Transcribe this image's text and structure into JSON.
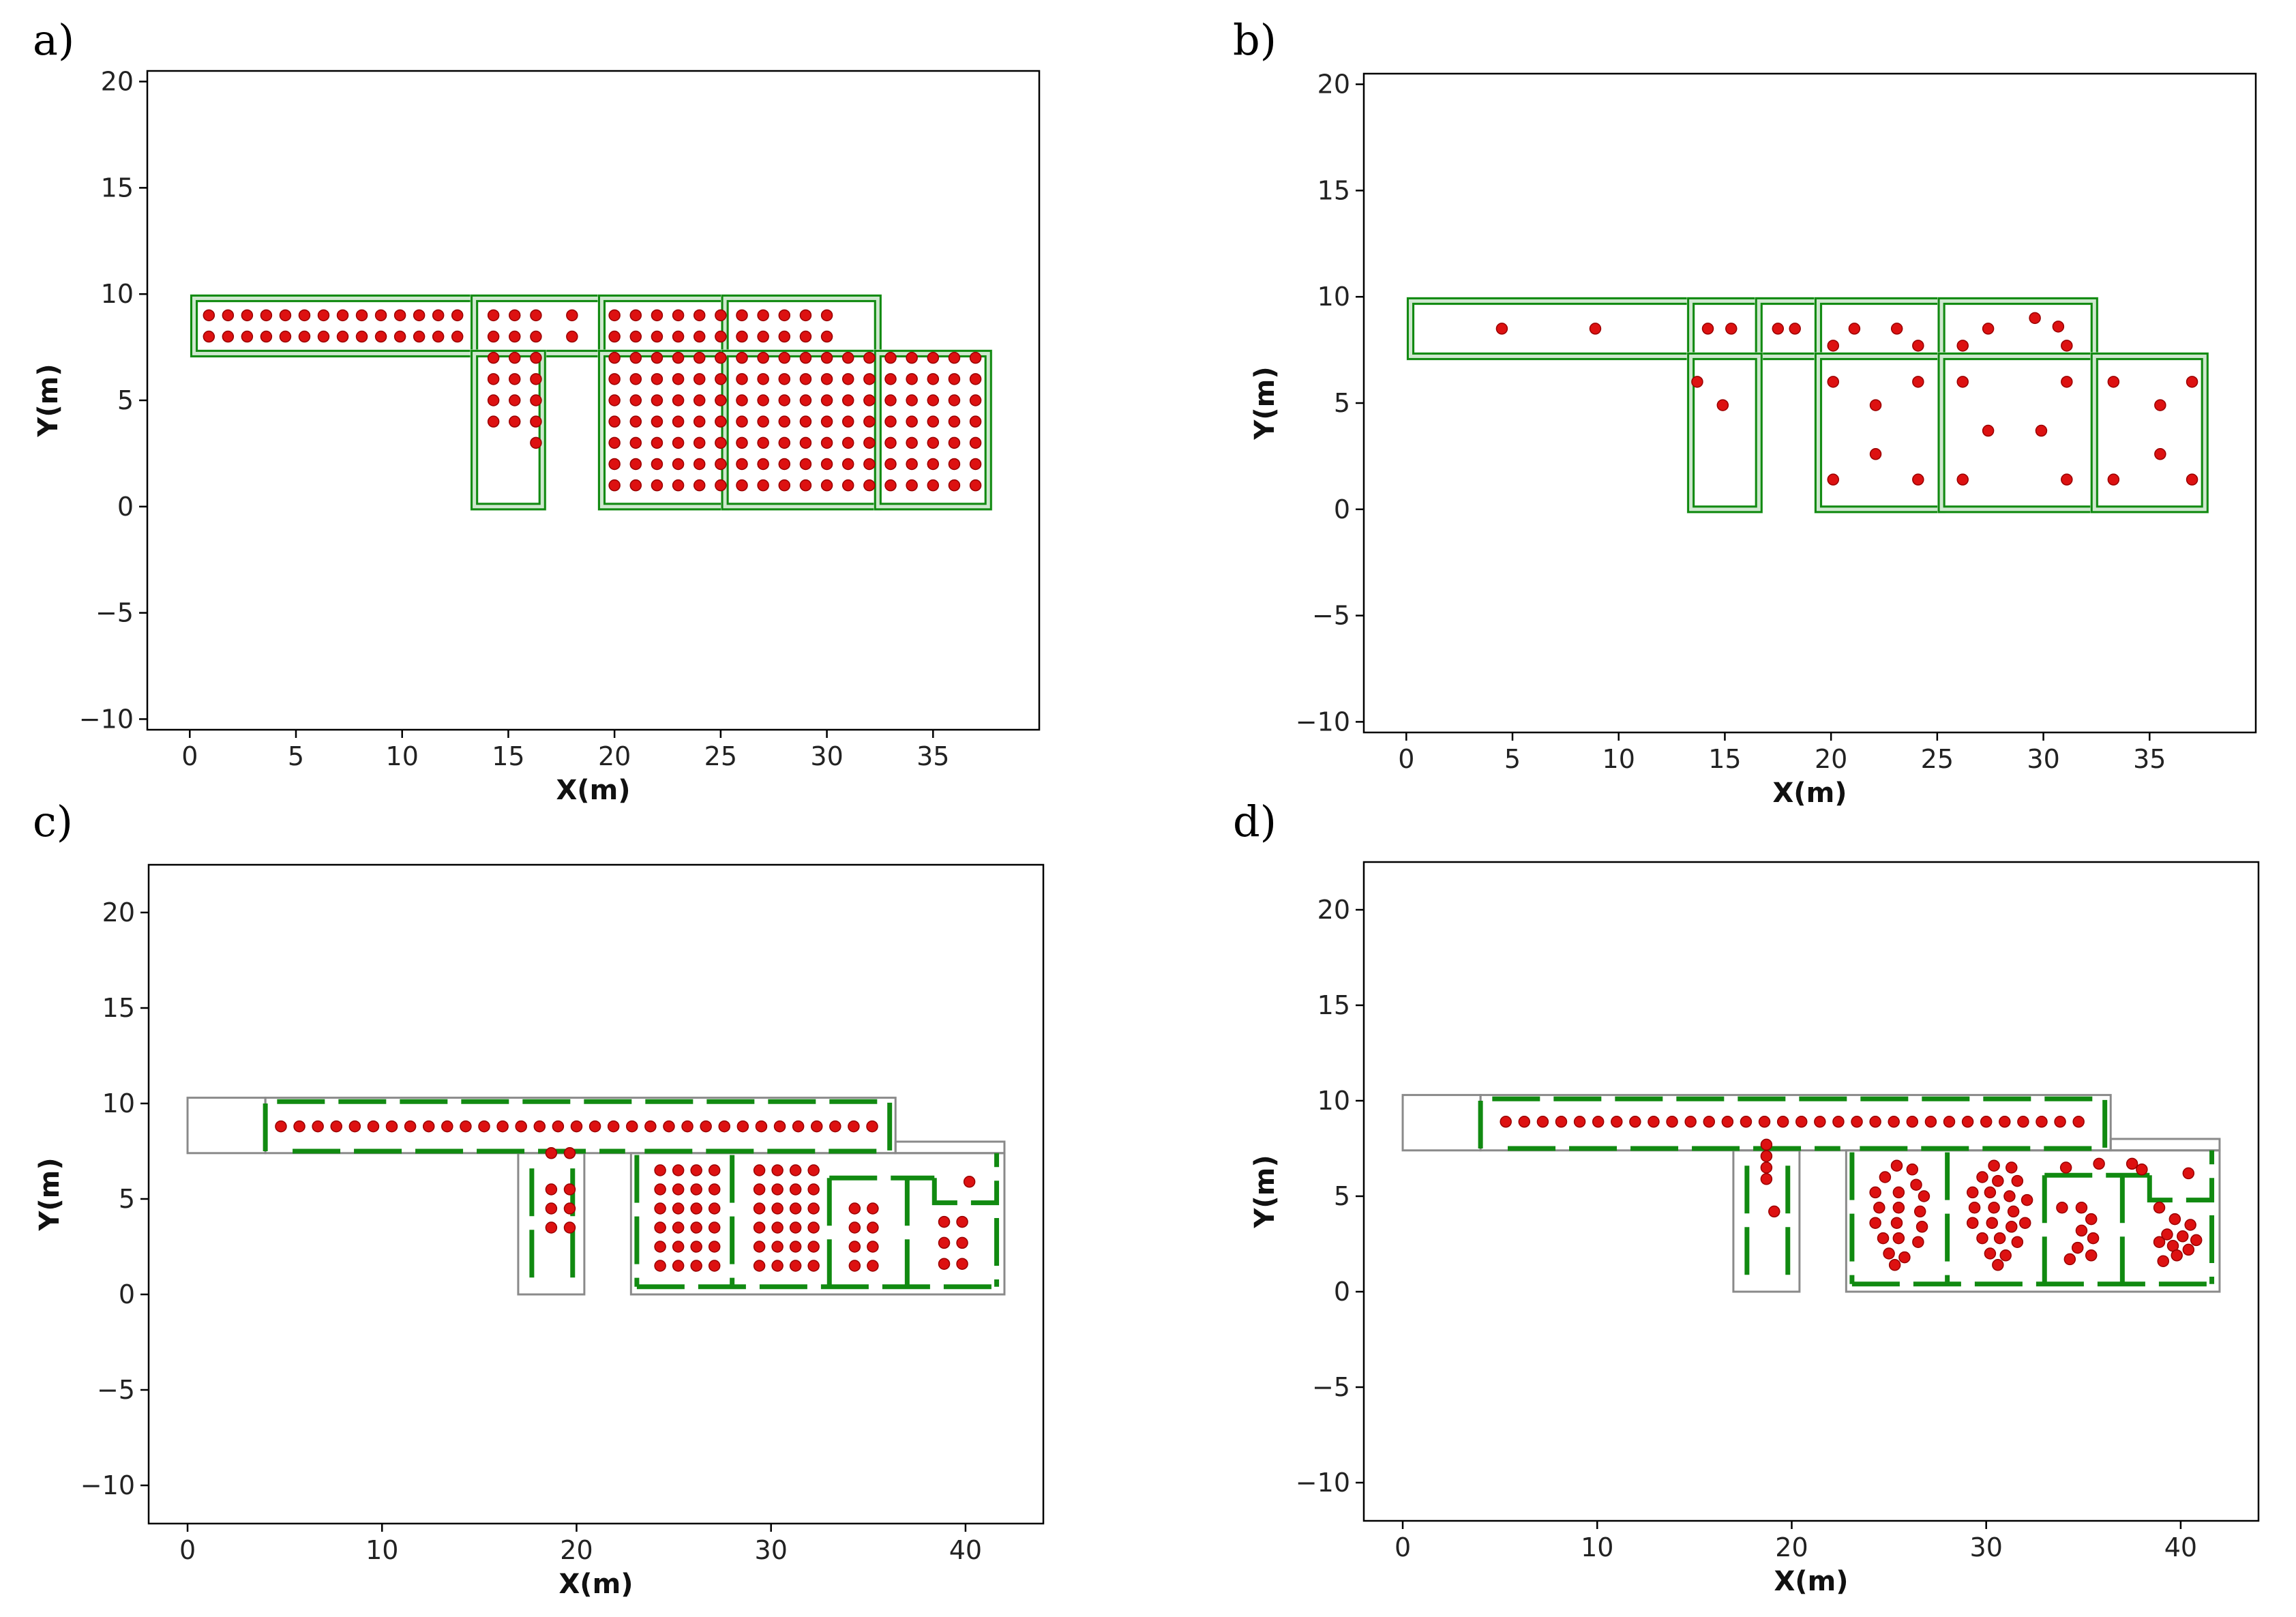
{
  "figure": {
    "panels": [
      {
        "label": "a)"
      },
      {
        "label": "b)"
      },
      {
        "label": "c)"
      },
      {
        "label": "d)"
      }
    ]
  },
  "colors": {
    "wall": "#118a11",
    "wall_fill": "#cfe8cf",
    "point": "#dd1111",
    "point_edge": "#990000",
    "gray": "#8a8a8a"
  },
  "chart_data": [
    {
      "id": "a",
      "type": "scatter",
      "title": "",
      "xlabel": "X(m)",
      "ylabel": "Y(m)",
      "xlim": [
        -2,
        40
      ],
      "ylim": [
        -10.5,
        20.5
      ],
      "xticks": [
        0,
        5,
        10,
        15,
        20,
        25,
        30,
        35
      ],
      "yticks": [
        -10,
        -5,
        0,
        5,
        10,
        15,
        20
      ],
      "rooms": [
        [
          0.2,
          7.2,
          13.4,
          9.8
        ],
        [
          13.4,
          7.2,
          19.4,
          9.8
        ],
        [
          19.4,
          7.2,
          25.2,
          9.8
        ],
        [
          25.2,
          7.2,
          32.4,
          9.8
        ],
        [
          13.4,
          0,
          16.6,
          7.2
        ],
        [
          19.4,
          0,
          25.2,
          7.2
        ],
        [
          25.2,
          0,
          32.4,
          7.2
        ],
        [
          32.4,
          0,
          37.6,
          7.2
        ]
      ],
      "gray_rooms": [
        [
          13.4,
          0,
          16.6,
          7.2
        ]
      ],
      "point_groups": [
        {
          "x_start": 0.9,
          "x_step": 0.9,
          "count": 14,
          "y": [
            9.0,
            8.0
          ]
        },
        {
          "x_start": 14.3,
          "x_step": 1.0,
          "count": 3,
          "y": [
            9.0,
            8.0
          ]
        },
        {
          "x_start": 18.0,
          "x_step": 1.0,
          "count": 1,
          "y": [
            9.0,
            8.0
          ]
        },
        {
          "x_start": 20.0,
          "x_step": 1.0,
          "count": 11,
          "y": [
            9.0,
            8.0
          ]
        },
        {
          "x_start": 14.3,
          "x_step": 1.0,
          "count": 3,
          "y": [
            7.0,
            6.0,
            5.0,
            4.0
          ]
        },
        {
          "x_start": 20.0,
          "x_step": 1.0,
          "count": 18,
          "y": [
            7.0,
            6.0,
            5.0,
            4.0,
            3.0,
            2.0,
            1.0
          ]
        }
      ],
      "points": [
        [
          16.3,
          3.0
        ]
      ]
    },
    {
      "id": "b",
      "type": "scatter",
      "title": "",
      "xlabel": "X(m)",
      "ylabel": "Y(m)",
      "xlim": [
        -2,
        40
      ],
      "ylim": [
        -10.5,
        20.5
      ],
      "xticks": [
        0,
        5,
        10,
        15,
        20,
        25,
        30,
        35
      ],
      "yticks": [
        -10,
        -5,
        0,
        5,
        10,
        15,
        20
      ],
      "rooms": [
        [
          0.2,
          7.2,
          13.4,
          9.8
        ],
        [
          13.4,
          7.2,
          16.6,
          9.8
        ],
        [
          16.6,
          7.2,
          19.4,
          9.8
        ],
        [
          19.4,
          7.2,
          25.2,
          9.8
        ],
        [
          25.2,
          7.2,
          32.4,
          9.8
        ],
        [
          13.4,
          0,
          16.6,
          7.2
        ],
        [
          19.4,
          0,
          25.2,
          7.2
        ],
        [
          25.2,
          0,
          32.4,
          7.2
        ],
        [
          32.4,
          0,
          37.6,
          7.2
        ]
      ],
      "gray_rooms": [
        [
          13.4,
          0,
          16.6,
          7.2
        ]
      ],
      "point_groups": [],
      "points": [
        [
          4.5,
          8.5
        ],
        [
          8.9,
          8.5
        ],
        [
          14.2,
          8.5
        ],
        [
          15.3,
          8.5
        ],
        [
          17.5,
          8.5
        ],
        [
          18.3,
          8.5
        ],
        [
          13.7,
          6.0
        ],
        [
          14.9,
          4.9
        ],
        [
          20.1,
          7.7
        ],
        [
          21.1,
          8.5
        ],
        [
          23.1,
          8.5
        ],
        [
          24.1,
          7.7
        ],
        [
          20.1,
          6.0
        ],
        [
          22.1,
          4.9
        ],
        [
          24.1,
          6.0
        ],
        [
          22.1,
          2.6
        ],
        [
          20.1,
          1.4
        ],
        [
          24.1,
          1.4
        ],
        [
          26.2,
          7.7
        ],
        [
          27.4,
          8.5
        ],
        [
          29.6,
          9.0
        ],
        [
          30.7,
          8.6
        ],
        [
          31.1,
          7.7
        ],
        [
          26.2,
          6.0
        ],
        [
          31.1,
          6.0
        ],
        [
          27.4,
          3.7
        ],
        [
          29.9,
          3.7
        ],
        [
          26.2,
          1.4
        ],
        [
          31.1,
          1.4
        ],
        [
          33.3,
          6.0
        ],
        [
          35.5,
          4.9
        ],
        [
          37.0,
          6.0
        ],
        [
          33.3,
          1.4
        ],
        [
          35.5,
          2.6
        ],
        [
          37.0,
          1.4
        ]
      ]
    },
    {
      "id": "c",
      "type": "scatter",
      "title": "",
      "xlabel": "X(m)",
      "ylabel": "Y(m)",
      "xlim": [
        -2,
        44
      ],
      "ylim": [
        -12,
        22.5
      ],
      "xticks": [
        0,
        10,
        20,
        30,
        40
      ],
      "yticks": [
        -10,
        -5,
        0,
        5,
        10,
        15,
        20
      ],
      "gray_rooms": [
        [
          0,
          7.4,
          4,
          10.3
        ],
        [
          4,
          7.4,
          36.4,
          10.3
        ],
        [
          17,
          0,
          20.4,
          7.4
        ],
        [
          22.8,
          0,
          42,
          7.4
        ],
        [
          36.4,
          7.4,
          42,
          8
        ]
      ],
      "green_segments": [
        [
          [
            4,
            7.5
          ],
          [
            4,
            10.1
          ],
          [
            36.1,
            10.1
          ],
          [
            36.1,
            7.5
          ]
        ],
        [
          [
            5.4,
            7.5
          ],
          [
            22.5,
            7.5
          ]
        ],
        [
          [
            23.5,
            7.5
          ],
          [
            36.1,
            7.5
          ]
        ],
        [
          [
            17.7,
            6.6
          ],
          [
            17.7,
            0.4
          ]
        ],
        [
          [
            19.8,
            6.6
          ],
          [
            19.8,
            0.4
          ]
        ],
        [
          [
            23.1,
            7.3
          ],
          [
            23.1,
            0.4
          ]
        ],
        [
          [
            23.1,
            0.4
          ],
          [
            41.6,
            0.4
          ]
        ],
        [
          [
            28.0,
            7.3
          ],
          [
            28.0,
            0.4
          ]
        ],
        [
          [
            33.0,
            6.1
          ],
          [
            33.0,
            0.4
          ]
        ],
        [
          [
            37.0,
            6.1
          ],
          [
            37.0,
            0.4
          ]
        ],
        [
          [
            33.0,
            6.1
          ],
          [
            38.4,
            6.1
          ]
        ],
        [
          [
            38.4,
            6.1
          ],
          [
            38.4,
            4.8
          ],
          [
            41.6,
            4.8
          ],
          [
            41.6,
            7.4
          ]
        ],
        [
          [
            41.6,
            4.0
          ],
          [
            41.6,
            0.4
          ]
        ]
      ],
      "point_groups": [
        {
          "x_start": 4.8,
          "x_step": 0.95,
          "count": 33,
          "y": [
            8.8
          ]
        },
        {
          "x_start": 18.7,
          "x_step": 0.95,
          "count": 2,
          "y": [
            7.4,
            5.5,
            4.5,
            3.5
          ]
        },
        {
          "x_start": 24.3,
          "x_step": 0.93,
          "count": 4,
          "y": [
            6.5,
            5.5,
            4.5,
            3.5,
            2.5,
            1.5
          ]
        },
        {
          "x_start": 29.4,
          "x_step": 0.93,
          "count": 4,
          "y": [
            6.5,
            5.5,
            4.5,
            3.5,
            2.5,
            1.5
          ]
        },
        {
          "x_start": 34.3,
          "x_step": 0.93,
          "count": 2,
          "y": [
            4.5,
            3.5,
            2.5,
            1.5
          ]
        },
        {
          "x_start": 38.9,
          "x_step": 0.93,
          "count": 2,
          "y": [
            3.8,
            2.7,
            1.6
          ]
        }
      ],
      "points": [
        [
          40.2,
          5.9
        ]
      ]
    },
    {
      "id": "d",
      "type": "scatter",
      "title": "",
      "xlabel": "X(m)",
      "ylabel": "Y(m)",
      "xlim": [
        -2,
        44
      ],
      "ylim": [
        -12,
        22.5
      ],
      "xticks": [
        0,
        10,
        20,
        30,
        40
      ],
      "yticks": [
        -10,
        -5,
        0,
        5,
        10,
        15,
        20
      ],
      "gray_rooms": [
        [
          0,
          7.4,
          4,
          10.3
        ],
        [
          4,
          7.4,
          36.4,
          10.3
        ],
        [
          17,
          0,
          20.4,
          7.4
        ],
        [
          22.8,
          0,
          42,
          7.4
        ],
        [
          36.4,
          7.4,
          42,
          8
        ]
      ],
      "green_segments": [
        [
          [
            4,
            7.5
          ],
          [
            4,
            10.1
          ],
          [
            36.1,
            10.1
          ],
          [
            36.1,
            7.5
          ]
        ],
        [
          [
            5.4,
            7.5
          ],
          [
            22.5,
            7.5
          ]
        ],
        [
          [
            23.5,
            7.5
          ],
          [
            36.1,
            7.5
          ]
        ],
        [
          [
            17.7,
            6.6
          ],
          [
            17.7,
            0.4
          ]
        ],
        [
          [
            19.8,
            6.6
          ],
          [
            19.8,
            0.4
          ]
        ],
        [
          [
            23.1,
            7.3
          ],
          [
            23.1,
            0.4
          ]
        ],
        [
          [
            23.1,
            0.4
          ],
          [
            41.6,
            0.4
          ]
        ],
        [
          [
            28.0,
            7.3
          ],
          [
            28.0,
            0.4
          ]
        ],
        [
          [
            33.0,
            6.1
          ],
          [
            33.0,
            0.4
          ]
        ],
        [
          [
            37.0,
            6.1
          ],
          [
            37.0,
            0.4
          ]
        ],
        [
          [
            33.0,
            6.1
          ],
          [
            38.4,
            6.1
          ]
        ],
        [
          [
            38.4,
            6.1
          ],
          [
            38.4,
            4.8
          ],
          [
            41.6,
            4.8
          ],
          [
            41.6,
            7.4
          ]
        ],
        [
          [
            41.6,
            4.0
          ],
          [
            41.6,
            0.4
          ]
        ]
      ],
      "point_groups": [
        {
          "x_start": 5.3,
          "x_step": 0.95,
          "count": 32,
          "y": [
            8.9
          ]
        }
      ],
      "points": [
        [
          18.7,
          7.7
        ],
        [
          18.7,
          7.1
        ],
        [
          18.7,
          6.5
        ],
        [
          18.7,
          5.9
        ],
        [
          19.1,
          4.2
        ],
        [
          25.4,
          6.6
        ],
        [
          26.2,
          6.4
        ],
        [
          24.8,
          6.0
        ],
        [
          26.4,
          5.6
        ],
        [
          24.3,
          5.2
        ],
        [
          25.5,
          5.2
        ],
        [
          26.8,
          5.0
        ],
        [
          24.5,
          4.4
        ],
        [
          25.5,
          4.4
        ],
        [
          26.6,
          4.2
        ],
        [
          24.3,
          3.6
        ],
        [
          25.4,
          3.6
        ],
        [
          26.7,
          3.4
        ],
        [
          24.7,
          2.8
        ],
        [
          25.5,
          2.8
        ],
        [
          26.5,
          2.6
        ],
        [
          25.0,
          2.0
        ],
        [
          25.8,
          1.8
        ],
        [
          25.3,
          1.4
        ],
        [
          30.4,
          6.6
        ],
        [
          31.3,
          6.5
        ],
        [
          29.8,
          6.0
        ],
        [
          30.6,
          5.8
        ],
        [
          31.6,
          5.8
        ],
        [
          29.3,
          5.2
        ],
        [
          30.2,
          5.2
        ],
        [
          31.2,
          5.0
        ],
        [
          32.1,
          4.8
        ],
        [
          29.4,
          4.4
        ],
        [
          30.4,
          4.4
        ],
        [
          31.4,
          4.2
        ],
        [
          29.3,
          3.6
        ],
        [
          30.3,
          3.6
        ],
        [
          31.3,
          3.4
        ],
        [
          32.0,
          3.6
        ],
        [
          29.8,
          2.8
        ],
        [
          30.7,
          2.8
        ],
        [
          31.6,
          2.6
        ],
        [
          30.2,
          2.0
        ],
        [
          31.0,
          1.9
        ],
        [
          30.6,
          1.4
        ],
        [
          34.9,
          4.4
        ],
        [
          35.4,
          3.8
        ],
        [
          34.9,
          3.2
        ],
        [
          35.5,
          2.8
        ],
        [
          34.7,
          2.3
        ],
        [
          35.4,
          1.9
        ],
        [
          34.3,
          1.7
        ],
        [
          33.9,
          4.4
        ],
        [
          34.1,
          6.5
        ],
        [
          35.8,
          6.7
        ],
        [
          37.5,
          6.7
        ],
        [
          38.0,
          6.4
        ],
        [
          38.9,
          4.4
        ],
        [
          38.9,
          2.6
        ],
        [
          39.7,
          3.8
        ],
        [
          40.5,
          3.5
        ],
        [
          40.1,
          2.9
        ],
        [
          39.3,
          3.0
        ],
        [
          39.6,
          2.4
        ],
        [
          40.4,
          2.2
        ],
        [
          40.8,
          2.7
        ],
        [
          39.1,
          1.6
        ],
        [
          40.4,
          6.2
        ],
        [
          39.8,
          1.9
        ]
      ]
    }
  ]
}
